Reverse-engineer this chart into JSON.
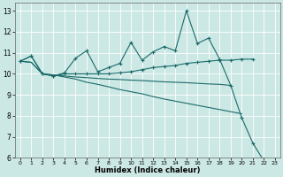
{
  "xlabel": "Humidex (Indice chaleur)",
  "background_color": "#cce8e4",
  "grid_color": "#ffffff",
  "line_color": "#1a6b6b",
  "xlim": [
    -0.5,
    23.5
  ],
  "ylim": [
    6,
    13.4
  ],
  "xticks": [
    0,
    1,
    2,
    3,
    4,
    5,
    6,
    7,
    8,
    9,
    10,
    11,
    12,
    13,
    14,
    15,
    16,
    17,
    18,
    19,
    20,
    21,
    22,
    23
  ],
  "yticks": [
    6,
    7,
    8,
    9,
    10,
    11,
    12,
    13
  ],
  "x": [
    0,
    1,
    2,
    3,
    4,
    5,
    6,
    7,
    8,
    9,
    10,
    11,
    12,
    13,
    14,
    15,
    16,
    17,
    18,
    19,
    20,
    21,
    22,
    23
  ],
  "line1_y": [
    10.6,
    10.85,
    10.0,
    9.9,
    10.05,
    10.75,
    11.1,
    10.1,
    10.3,
    10.5,
    11.5,
    10.65,
    11.05,
    11.3,
    11.1,
    13.0,
    11.45,
    11.7,
    10.7,
    9.45,
    7.9,
    6.7,
    5.85,
    null
  ],
  "line2_y": [
    10.6,
    10.85,
    10.0,
    9.9,
    10.0,
    10.0,
    10.0,
    10.0,
    10.0,
    10.05,
    10.1,
    10.2,
    10.3,
    10.35,
    10.4,
    10.5,
    10.55,
    10.6,
    10.65,
    10.65,
    10.7,
    10.7,
    null,
    null
  ],
  "line3_y": [
    10.6,
    10.55,
    10.0,
    9.95,
    9.85,
    9.75,
    9.6,
    9.5,
    9.38,
    9.25,
    9.15,
    9.05,
    8.92,
    8.8,
    8.7,
    8.6,
    8.5,
    8.4,
    8.3,
    8.2,
    8.1,
    null,
    null,
    null
  ],
  "line4_y": [
    10.6,
    10.55,
    10.0,
    9.95,
    9.9,
    9.85,
    9.82,
    9.78,
    9.75,
    9.73,
    9.7,
    9.68,
    9.65,
    9.62,
    9.6,
    9.58,
    9.55,
    9.52,
    9.5,
    9.45,
    null,
    null,
    null,
    null
  ]
}
